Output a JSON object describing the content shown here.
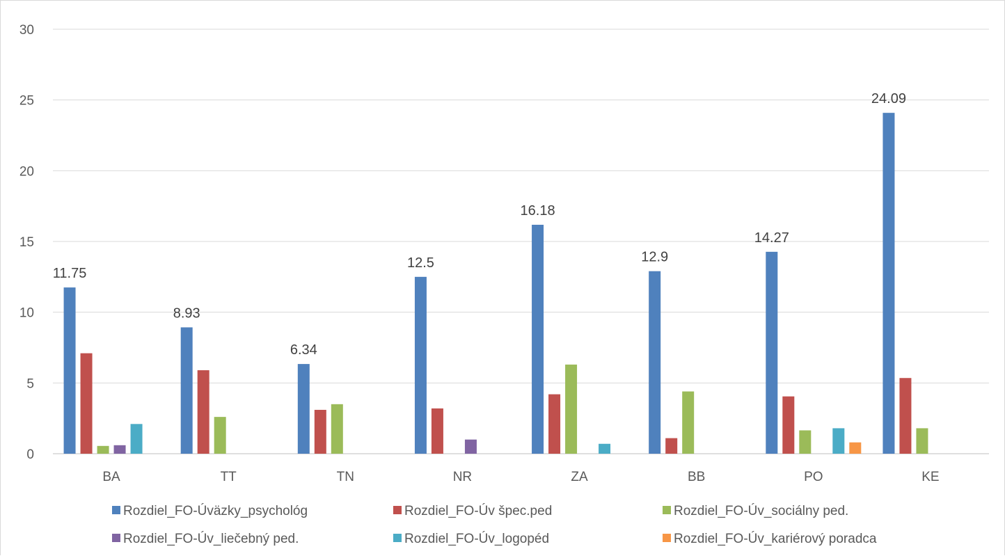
{
  "chart_data": {
    "type": "bar",
    "categories": [
      "BA",
      "TT",
      "TN",
      "NR",
      "ZA",
      "BB",
      "PO",
      "KE"
    ],
    "ylim": [
      0,
      30
    ],
    "yticks": [
      0,
      5,
      10,
      15,
      20,
      25,
      30
    ],
    "grid": true,
    "legend_position": "bottom",
    "series": [
      {
        "name": "Rozdiel_FO-Úväzky_psychológ",
        "color": "#4f81bd",
        "values": [
          11.75,
          8.93,
          6.34,
          12.5,
          16.18,
          12.9,
          14.27,
          24.09
        ],
        "labels": [
          "11.75",
          "8.93",
          "6.34",
          "12.5",
          "16.18",
          "12.9",
          "14.27",
          "24.09"
        ]
      },
      {
        "name": "Rozdiel_FO-Úv špec.ped",
        "color": "#c0504d",
        "values": [
          7.1,
          5.9,
          3.1,
          3.2,
          4.2,
          1.1,
          4.05,
          5.35
        ]
      },
      {
        "name": "Rozdiel_FO-Úv_sociálny ped.",
        "color": "#9bbb59",
        "values": [
          0.55,
          2.6,
          3.5,
          0,
          6.3,
          4.4,
          1.65,
          1.8
        ]
      },
      {
        "name": "Rozdiel_FO-Úv_liečebný ped.",
        "color": "#8064a2",
        "values": [
          0.6,
          0,
          0,
          1.0,
          0,
          0,
          0,
          0
        ]
      },
      {
        "name": "Rozdiel_FO-Úv_logopéd",
        "color": "#4bacc6",
        "values": [
          2.1,
          0,
          0,
          0,
          0.7,
          0,
          1.8,
          0
        ]
      },
      {
        "name": "Rozdiel_FO-Úv_kariérový poradca",
        "color": "#f79646",
        "values": [
          0,
          0,
          0,
          0,
          0,
          0,
          0.8,
          0
        ]
      }
    ]
  }
}
